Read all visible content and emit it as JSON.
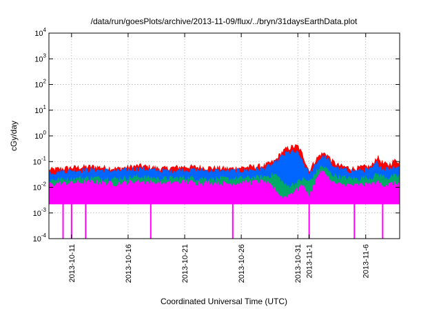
{
  "chart_data": {
    "type": "area",
    "title": "/data/run/goesPlots/archive/2013-11-09/flux/../bryn/31daysEarthData.plot",
    "xlabel": "Coordinated Universal Time (UTC)",
    "ylabel": "cGy/day",
    "yscale": "log",
    "ylim": [
      0.0001,
      10000
    ],
    "xlim": [
      "2013-10-09T00:00",
      "2013-11-09T00:00"
    ],
    "grid": true,
    "legend": "none",
    "y_ticks": [
      {
        "base": "10",
        "exp": "-4"
      },
      {
        "base": "10",
        "exp": "-3"
      },
      {
        "base": "10",
        "exp": "-2"
      },
      {
        "base": "10",
        "exp": "-1"
      },
      {
        "base": "10",
        "exp": "0"
      },
      {
        "base": "10",
        "exp": "1"
      },
      {
        "base": "10",
        "exp": "2"
      },
      {
        "base": "10",
        "exp": "3"
      },
      {
        "base": "10",
        "exp": "4"
      }
    ],
    "x_ticks": [
      {
        "label": "2013-10-11",
        "date": "2013-10-11"
      },
      {
        "label": "2013-10-16",
        "date": "2013-10-16"
      },
      {
        "label": "2013-10-21",
        "date": "2013-10-21"
      },
      {
        "label": "2013-10-26",
        "date": "2013-10-26"
      },
      {
        "label": "2013-10-31",
        "date": "2013-10-31"
      },
      {
        "label": "2013-11-1",
        "date": "2013-11-01"
      },
      {
        "label": "2013-11-6",
        "date": "2013-11-06"
      }
    ],
    "series": [
      {
        "color": "#ff0000",
        "x": [
          "2013-10-09",
          "2013-10-11",
          "2013-10-13",
          "2013-10-15",
          "2013-10-17",
          "2013-10-19",
          "2013-10-21",
          "2013-10-23",
          "2013-10-25",
          "2013-10-27",
          "2013-10-28",
          "2013-10-29",
          "2013-10-29T12:00",
          "2013-10-30",
          "2013-10-30T12:00",
          "2013-10-31",
          "2013-10-31T12:00",
          "2013-11-01",
          "2013-11-01T12:00",
          "2013-11-02",
          "2013-11-02T12:00",
          "2013-11-03",
          "2013-11-03T12:00",
          "2013-11-04",
          "2013-11-05",
          "2013-11-06",
          "2013-11-06T12:00",
          "2013-11-07",
          "2013-11-07T12:00",
          "2013-11-08",
          "2013-11-08T12:00",
          "2013-11-09"
        ],
        "y": [
          0.045,
          0.055,
          0.06,
          0.05,
          0.065,
          0.05,
          0.06,
          0.055,
          0.05,
          0.06,
          0.065,
          0.1,
          0.2,
          0.3,
          0.35,
          0.38,
          0.15,
          0.04,
          0.1,
          0.18,
          0.2,
          0.1,
          0.07,
          0.06,
          0.05,
          0.06,
          0.06,
          0.15,
          0.08,
          0.07,
          0.1,
          0.1
        ]
      },
      {
        "color": "#0066ff",
        "x": [
          "2013-10-09",
          "2013-10-11",
          "2013-10-13",
          "2013-10-15",
          "2013-10-17",
          "2013-10-19",
          "2013-10-21",
          "2013-10-23",
          "2013-10-25",
          "2013-10-27",
          "2013-10-28",
          "2013-10-29",
          "2013-10-29T12:00",
          "2013-10-30",
          "2013-10-30T12:00",
          "2013-10-31",
          "2013-10-31T12:00",
          "2013-11-01",
          "2013-11-01T12:00",
          "2013-11-02",
          "2013-11-02T12:00",
          "2013-11-03",
          "2013-11-03T12:00",
          "2013-11-04",
          "2013-11-05",
          "2013-11-06",
          "2013-11-06T12:00",
          "2013-11-07",
          "2013-11-07T12:00",
          "2013-11-08",
          "2013-11-08T12:00",
          "2013-11-09"
        ],
        "y": [
          0.035,
          0.042,
          0.045,
          0.04,
          0.05,
          0.04,
          0.045,
          0.042,
          0.04,
          0.045,
          0.05,
          0.08,
          0.14,
          0.2,
          0.22,
          0.2,
          0.08,
          0.03,
          0.07,
          0.13,
          0.14,
          0.07,
          0.05,
          0.045,
          0.04,
          0.045,
          0.045,
          0.09,
          0.05,
          0.05,
          0.06,
          0.06
        ]
      },
      {
        "color": "#00aa66",
        "x": [
          "2013-10-09",
          "2013-10-11",
          "2013-10-13",
          "2013-10-15",
          "2013-10-17",
          "2013-10-19",
          "2013-10-21",
          "2013-10-23",
          "2013-10-25",
          "2013-10-27",
          "2013-10-28",
          "2013-10-29",
          "2013-10-29T12:00",
          "2013-10-30",
          "2013-10-30T12:00",
          "2013-10-31",
          "2013-10-31T12:00",
          "2013-11-01",
          "2013-11-01T12:00",
          "2013-11-02",
          "2013-11-02T12:00",
          "2013-11-03",
          "2013-11-03T12:00",
          "2013-11-04",
          "2013-11-05",
          "2013-11-06",
          "2013-11-06T12:00",
          "2013-11-07",
          "2013-11-07T12:00",
          "2013-11-08",
          "2013-11-08T12:00",
          "2013-11-09"
        ],
        "y": [
          0.018,
          0.02,
          0.022,
          0.02,
          0.024,
          0.02,
          0.022,
          0.02,
          0.02,
          0.022,
          0.024,
          0.03,
          0.018,
          0.01,
          0.012,
          0.015,
          0.02,
          0.015,
          0.03,
          0.06,
          0.05,
          0.03,
          0.025,
          0.022,
          0.02,
          0.022,
          0.022,
          0.03,
          0.025,
          0.022,
          0.025,
          0.025
        ]
      },
      {
        "color": "#ff00ff",
        "x": [
          "2013-10-09",
          "2013-10-11",
          "2013-10-13",
          "2013-10-15",
          "2013-10-17",
          "2013-10-19",
          "2013-10-21",
          "2013-10-23",
          "2013-10-25",
          "2013-10-27",
          "2013-10-28",
          "2013-10-29",
          "2013-10-29T12:00",
          "2013-10-30",
          "2013-10-30T12:00",
          "2013-10-31",
          "2013-10-31T12:00",
          "2013-11-01",
          "2013-11-01T12:00",
          "2013-11-02",
          "2013-11-02T12:00",
          "2013-11-03",
          "2013-11-03T12:00",
          "2013-11-04",
          "2013-11-05",
          "2013-11-06",
          "2013-11-06T12:00",
          "2013-11-07",
          "2013-11-07T12:00",
          "2013-11-08",
          "2013-11-08T12:00",
          "2013-11-09"
        ],
        "y": [
          0.012,
          0.014,
          0.015,
          0.013,
          0.016,
          0.013,
          0.015,
          0.014,
          0.013,
          0.015,
          0.016,
          0.008,
          0.004,
          0.004,
          0.006,
          0.008,
          0.012,
          0.004,
          0.015,
          0.04,
          0.03,
          0.015,
          0.012,
          0.012,
          0.011,
          0.012,
          0.012,
          0.015,
          0.012,
          0.012,
          0.013,
          0.013
        ]
      }
    ],
    "dropouts": [
      "2013-10-10T06:00",
      "2013-10-11T00:00",
      "2013-10-12T06:00",
      "2013-10-18T00:00",
      "2013-10-25T06:00",
      "2013-11-01T00:00",
      "2013-11-05T00:00",
      "2013-11-07T12:00"
    ]
  }
}
